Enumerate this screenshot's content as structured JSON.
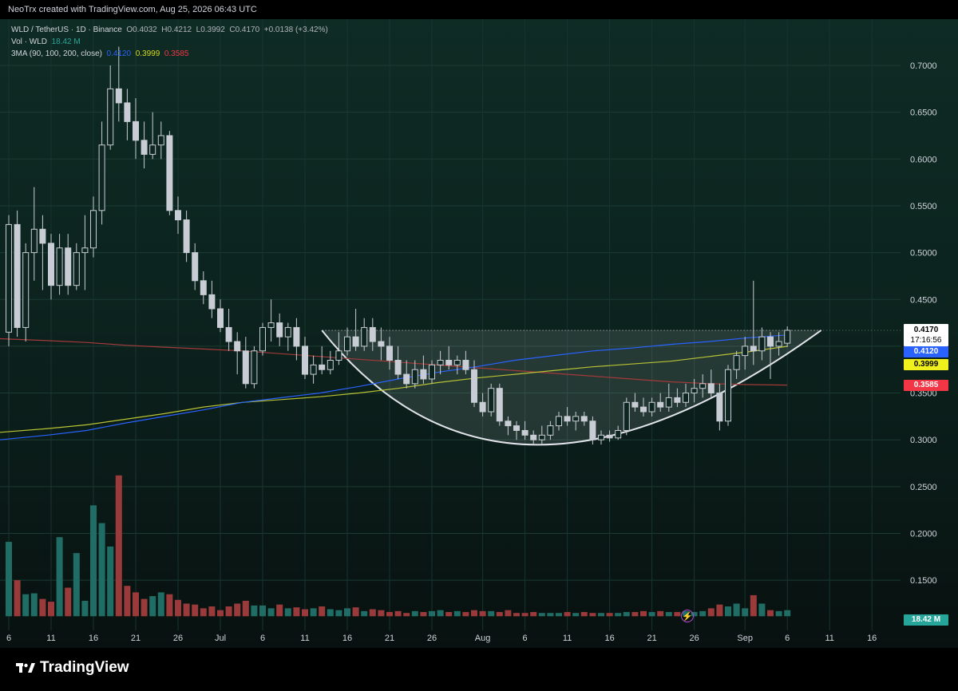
{
  "header": {
    "text": "NeoTrx created with TradingView.com, Aug 25, 2026 06:43 UTC"
  },
  "legend": {
    "symbol": "WLD / TetherUS · 1D · Binance",
    "o": "O0.4032",
    "h": "H0.4212",
    "l": "L0.3992",
    "c": "C0.4170",
    "change": "+0.0138 (+3.42%)",
    "vol_label": "Vol · WLD",
    "vol_value": "18.42 M",
    "ma_label": "3MA (90, 100, 200, close)",
    "ma90": "0.4120",
    "ma100": "0.3999",
    "ma200": "0.3585"
  },
  "price_tags": {
    "last": "0.4170",
    "countdown": "17:16:56",
    "ma90": "0.4120",
    "ma100": "0.3999",
    "ma200": "0.3585",
    "volume": "18.42 M"
  },
  "colors": {
    "up": "#d1d4dc",
    "vol_up": "#1f6d64",
    "vol_down": "#9b3a3a",
    "ma90": "#2962ff",
    "ma100": "#b8c234",
    "ma200": "#a33a3a",
    "cup": "#e0e3ea"
  },
  "footer": {
    "brand": "TradingView",
    "logo_icon": "tradingview-logo-icon",
    "bolt_icon": "lightning-icon"
  },
  "chart_data": {
    "type": "candlestick",
    "title": "WLD / TetherUS · 1D · Binance",
    "y_ticks": [
      "0.7000",
      "0.6500",
      "0.6000",
      "0.5500",
      "0.5000",
      "0.4500",
      "0.4000",
      "0.3500",
      "0.3000",
      "0.2500",
      "0.2000",
      "0.1500"
    ],
    "y_tick_values": [
      0.7,
      0.65,
      0.6,
      0.55,
      0.5,
      0.45,
      0.4,
      0.35,
      0.3,
      0.25,
      0.2,
      0.15
    ],
    "x_ticks": [
      {
        "label": "6",
        "day": 6
      },
      {
        "label": "11",
        "day": 11
      },
      {
        "label": "16",
        "day": 16
      },
      {
        "label": "21",
        "day": 21
      },
      {
        "label": "26",
        "day": 26
      },
      {
        "label": "Jul",
        "day": 31
      },
      {
        "label": "6",
        "day": 36
      },
      {
        "label": "11",
        "day": 41
      },
      {
        "label": "16",
        "day": 46
      },
      {
        "label": "21",
        "day": 51
      },
      {
        "label": "26",
        "day": 56
      },
      {
        "label": "Aug",
        "day": 62
      },
      {
        "label": "6",
        "day": 67
      },
      {
        "label": "11",
        "day": 72
      },
      {
        "label": "16",
        "day": 77
      },
      {
        "label": "21",
        "day": 82
      },
      {
        "label": "26",
        "day": 87
      },
      {
        "label": "Sep",
        "day": 93
      },
      {
        "label": "6",
        "day": 98
      },
      {
        "label": "11",
        "day": 103
      },
      {
        "label": "16",
        "day": 108
      }
    ],
    "start_day": 6,
    "ohlc": [
      [
        0.415,
        0.54,
        0.4,
        0.53
      ],
      [
        0.53,
        0.545,
        0.41,
        0.42
      ],
      [
        0.42,
        0.51,
        0.405,
        0.5
      ],
      [
        0.5,
        0.57,
        0.47,
        0.525
      ],
      [
        0.525,
        0.54,
        0.46,
        0.51
      ],
      [
        0.51,
        0.52,
        0.45,
        0.465
      ],
      [
        0.465,
        0.52,
        0.455,
        0.505
      ],
      [
        0.505,
        0.52,
        0.455,
        0.465
      ],
      [
        0.465,
        0.51,
        0.46,
        0.5
      ],
      [
        0.5,
        0.54,
        0.46,
        0.505
      ],
      [
        0.505,
        0.56,
        0.495,
        0.545
      ],
      [
        0.545,
        0.64,
        0.53,
        0.615
      ],
      [
        0.615,
        0.7,
        0.61,
        0.675
      ],
      [
        0.675,
        0.72,
        0.64,
        0.66
      ],
      [
        0.66,
        0.675,
        0.62,
        0.64
      ],
      [
        0.64,
        0.665,
        0.6,
        0.62
      ],
      [
        0.62,
        0.64,
        0.59,
        0.605
      ],
      [
        0.605,
        0.65,
        0.6,
        0.615
      ],
      [
        0.615,
        0.64,
        0.6,
        0.625
      ],
      [
        0.625,
        0.63,
        0.54,
        0.545
      ],
      [
        0.545,
        0.56,
        0.52,
        0.535
      ],
      [
        0.535,
        0.545,
        0.49,
        0.5
      ],
      [
        0.5,
        0.51,
        0.46,
        0.47
      ],
      [
        0.47,
        0.48,
        0.445,
        0.455
      ],
      [
        0.455,
        0.47,
        0.43,
        0.44
      ],
      [
        0.44,
        0.45,
        0.415,
        0.42
      ],
      [
        0.42,
        0.44,
        0.395,
        0.405
      ],
      [
        0.405,
        0.415,
        0.37,
        0.395
      ],
      [
        0.395,
        0.41,
        0.355,
        0.36
      ],
      [
        0.36,
        0.4,
        0.355,
        0.395
      ],
      [
        0.395,
        0.425,
        0.39,
        0.42
      ],
      [
        0.42,
        0.45,
        0.405,
        0.425
      ],
      [
        0.425,
        0.435,
        0.4,
        0.41
      ],
      [
        0.41,
        0.425,
        0.395,
        0.42
      ],
      [
        0.42,
        0.43,
        0.385,
        0.4
      ],
      [
        0.4,
        0.41,
        0.365,
        0.37
      ],
      [
        0.37,
        0.39,
        0.36,
        0.38
      ],
      [
        0.38,
        0.4,
        0.37,
        0.375
      ],
      [
        0.375,
        0.395,
        0.37,
        0.385
      ],
      [
        0.385,
        0.415,
        0.38,
        0.395
      ],
      [
        0.395,
        0.42,
        0.39,
        0.41
      ],
      [
        0.41,
        0.44,
        0.395,
        0.4
      ],
      [
        0.4,
        0.43,
        0.395,
        0.42
      ],
      [
        0.42,
        0.43,
        0.395,
        0.405
      ],
      [
        0.405,
        0.42,
        0.385,
        0.4
      ],
      [
        0.4,
        0.41,
        0.375,
        0.385
      ],
      [
        0.385,
        0.4,
        0.365,
        0.37
      ],
      [
        0.37,
        0.385,
        0.355,
        0.36
      ],
      [
        0.36,
        0.385,
        0.355,
        0.375
      ],
      [
        0.375,
        0.39,
        0.36,
        0.365
      ],
      [
        0.365,
        0.385,
        0.36,
        0.38
      ],
      [
        0.38,
        0.395,
        0.37,
        0.385
      ],
      [
        0.385,
        0.4,
        0.375,
        0.38
      ],
      [
        0.38,
        0.39,
        0.37,
        0.385
      ],
      [
        0.385,
        0.395,
        0.37,
        0.375
      ],
      [
        0.375,
        0.385,
        0.335,
        0.34
      ],
      [
        0.34,
        0.35,
        0.325,
        0.33
      ],
      [
        0.33,
        0.36,
        0.325,
        0.355
      ],
      [
        0.355,
        0.36,
        0.315,
        0.32
      ],
      [
        0.32,
        0.325,
        0.305,
        0.315
      ],
      [
        0.315,
        0.32,
        0.3,
        0.31
      ],
      [
        0.31,
        0.32,
        0.3,
        0.305
      ],
      [
        0.305,
        0.31,
        0.295,
        0.3
      ],
      [
        0.3,
        0.315,
        0.295,
        0.305
      ],
      [
        0.305,
        0.32,
        0.3,
        0.315
      ],
      [
        0.315,
        0.33,
        0.31,
        0.325
      ],
      [
        0.325,
        0.335,
        0.315,
        0.32
      ],
      [
        0.32,
        0.33,
        0.31,
        0.325
      ],
      [
        0.325,
        0.33,
        0.315,
        0.32
      ],
      [
        0.32,
        0.325,
        0.295,
        0.3
      ],
      [
        0.3,
        0.31,
        0.295,
        0.305
      ],
      [
        0.305,
        0.31,
        0.298,
        0.302
      ],
      [
        0.302,
        0.315,
        0.3,
        0.31
      ],
      [
        0.31,
        0.345,
        0.305,
        0.34
      ],
      [
        0.34,
        0.35,
        0.33,
        0.335
      ],
      [
        0.335,
        0.345,
        0.325,
        0.33
      ],
      [
        0.33,
        0.345,
        0.325,
        0.34
      ],
      [
        0.34,
        0.35,
        0.33,
        0.335
      ],
      [
        0.335,
        0.36,
        0.33,
        0.345
      ],
      [
        0.345,
        0.355,
        0.335,
        0.34
      ],
      [
        0.34,
        0.36,
        0.335,
        0.35
      ],
      [
        0.35,
        0.365,
        0.34,
        0.355
      ],
      [
        0.355,
        0.37,
        0.345,
        0.36
      ],
      [
        0.36,
        0.375,
        0.345,
        0.35
      ],
      [
        0.35,
        0.36,
        0.31,
        0.32
      ],
      [
        0.32,
        0.38,
        0.315,
        0.375
      ],
      [
        0.375,
        0.395,
        0.365,
        0.39
      ],
      [
        0.39,
        0.41,
        0.375,
        0.4
      ],
      [
        0.4,
        0.47,
        0.38,
        0.395
      ],
      [
        0.395,
        0.42,
        0.385,
        0.41
      ],
      [
        0.41,
        0.415,
        0.365,
        0.4
      ],
      [
        0.4,
        0.415,
        0.39,
        0.405
      ],
      [
        0.4032,
        0.4212,
        0.3992,
        0.417
      ]
    ],
    "volume_scale_note": "",
    "volume": [
      0.191,
      0.15,
      0.135,
      0.136,
      0.13,
      0.127,
      0.196,
      0.142,
      0.179,
      0.128,
      0.23,
      0.211,
      0.186,
      0.262,
      0.144,
      0.137,
      0.13,
      0.133,
      0.137,
      0.135,
      0.129,
      0.125,
      0.124,
      0.12,
      0.122,
      0.118,
      0.122,
      0.125,
      0.128,
      0.123,
      0.123,
      0.12,
      0.124,
      0.12,
      0.121,
      0.119,
      0.12,
      0.122,
      0.119,
      0.118,
      0.12,
      0.121,
      0.117,
      0.119,
      0.118,
      0.116,
      0.117,
      0.115,
      0.117,
      0.116,
      0.117,
      0.118,
      0.116,
      0.117,
      0.116,
      0.118,
      0.117,
      0.117,
      0.116,
      0.118,
      0.115,
      0.115,
      0.116,
      0.115,
      0.115,
      0.115,
      0.116,
      0.115,
      0.116,
      0.115,
      0.115,
      0.115,
      0.115,
      0.116,
      0.116,
      0.117,
      0.116,
      0.117,
      0.116,
      0.116,
      0.117,
      0.116,
      0.117,
      0.12,
      0.124,
      0.122,
      0.125,
      0.12,
      0.134,
      0.125,
      0.118,
      0.117,
      0.118
    ],
    "ma90": {
      "start_index": 0,
      "values": [
        0.3,
        0.305,
        0.31,
        0.318,
        0.325,
        0.332,
        0.34,
        0.345,
        0.35,
        0.357,
        0.365,
        0.372,
        0.378,
        0.385,
        0.39,
        0.395,
        0.398,
        0.402,
        0.405,
        0.409,
        0.412
      ]
    },
    "ma100": {
      "start_index": 0,
      "values": [
        0.308,
        0.312,
        0.316,
        0.322,
        0.328,
        0.335,
        0.34,
        0.343,
        0.346,
        0.35,
        0.355,
        0.361,
        0.366,
        0.37,
        0.374,
        0.378,
        0.381,
        0.384,
        0.389,
        0.394,
        0.3999
      ]
    },
    "ma200": {
      "start_index": 0,
      "values": [
        0.408,
        0.406,
        0.404,
        0.401,
        0.399,
        0.397,
        0.395,
        0.392,
        0.389,
        0.386,
        0.383,
        0.38,
        0.377,
        0.374,
        0.371,
        0.368,
        0.365,
        0.362,
        0.36,
        0.359,
        0.3585
      ]
    },
    "cup_pattern": {
      "rim_price": 0.417,
      "bottom_price": 0.2935,
      "left_day": 43,
      "right_day": 102,
      "bottom_day": 66
    }
  }
}
